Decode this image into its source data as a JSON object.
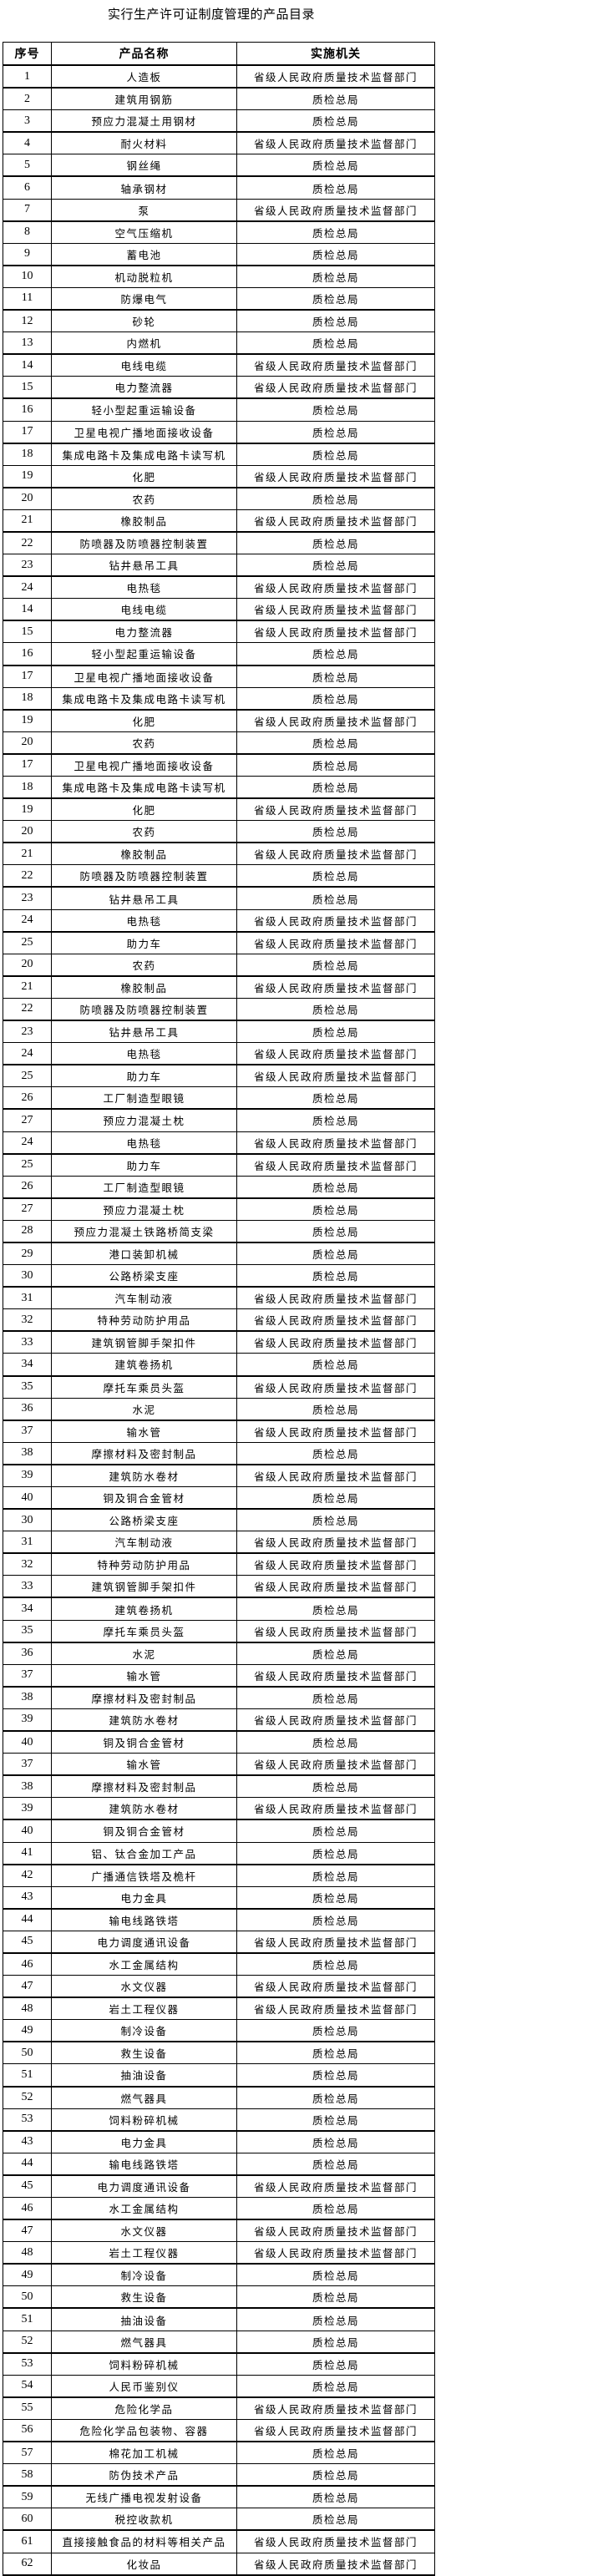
{
  "title": "实行生产许可证制度管理的产品目录",
  "headers": [
    "序号",
    "产品名称",
    "实施机关"
  ],
  "rows": [
    [
      "1",
      "人造板",
      "省级人民政府质量技术监督部门"
    ],
    [
      "2",
      "建筑用钢筋",
      "质检总局"
    ],
    [
      "3",
      "预应力混凝土用钢材",
      "质检总局"
    ],
    [
      "4",
      "耐火材料",
      "省级人民政府质量技术监督部门"
    ],
    [
      "5",
      "钢丝绳",
      "质检总局"
    ],
    [
      "6",
      "轴承钢材",
      "质检总局"
    ],
    [
      "7",
      "泵",
      "省级人民政府质量技术监督部门"
    ],
    [
      "8",
      "空气压缩机",
      "质检总局"
    ],
    [
      "9",
      "蓄电池",
      "质检总局"
    ],
    [
      "10",
      "机动脱粒机",
      "质检总局"
    ],
    [
      "11",
      "防爆电气",
      "质检总局"
    ],
    [
      "12",
      "砂轮",
      "质检总局"
    ],
    [
      "13",
      "内燃机",
      "质检总局"
    ],
    [
      "14",
      "电线电缆",
      "省级人民政府质量技术监督部门"
    ],
    [
      "15",
      "电力整流器",
      "省级人民政府质量技术监督部门"
    ],
    [
      "16",
      "轻小型起重运输设备",
      "质检总局"
    ],
    [
      "17",
      "卫星电视广播地面接收设备",
      "质检总局"
    ],
    [
      "18",
      "集成电路卡及集成电路卡读写机",
      "质检总局"
    ],
    [
      "19",
      "化肥",
      "省级人民政府质量技术监督部门"
    ],
    [
      "20",
      "农药",
      "质检总局"
    ],
    [
      "21",
      "橡胶制品",
      "省级人民政府质量技术监督部门"
    ],
    [
      "22",
      "防喷器及防喷器控制装置",
      "质检总局"
    ],
    [
      "23",
      "钻井悬吊工具",
      "质检总局"
    ],
    [
      "24",
      "电热毯",
      "省级人民政府质量技术监督部门"
    ],
    [
      "14",
      "电线电缆",
      "省级人民政府质量技术监督部门"
    ],
    [
      "15",
      "电力整流器",
      "省级人民政府质量技术监督部门"
    ],
    [
      "16",
      "轻小型起重运输设备",
      "质检总局"
    ],
    [
      "17",
      "卫星电视广播地面接收设备",
      "质检总局"
    ],
    [
      "18",
      "集成电路卡及集成电路卡读写机",
      "质检总局"
    ],
    [
      "19",
      "化肥",
      "省级人民政府质量技术监督部门"
    ],
    [
      "20",
      "农药",
      "质检总局"
    ],
    [
      "17",
      "卫星电视广播地面接收设备",
      "质检总局"
    ],
    [
      "18",
      "集成电路卡及集成电路卡读写机",
      "质检总局"
    ],
    [
      "19",
      "化肥",
      "省级人民政府质量技术监督部门"
    ],
    [
      "20",
      "农药",
      "质检总局"
    ],
    [
      "21",
      "橡胶制品",
      "省级人民政府质量技术监督部门"
    ],
    [
      "22",
      "防喷器及防喷器控制装置",
      "质检总局"
    ],
    [
      "23",
      "钻井悬吊工具",
      "质检总局"
    ],
    [
      "24",
      "电热毯",
      "省级人民政府质量技术监督部门"
    ],
    [
      "25",
      "助力车",
      "省级人民政府质量技术监督部门"
    ],
    [
      "20",
      "农药",
      "质检总局"
    ],
    [
      "21",
      "橡胶制品",
      "省级人民政府质量技术监督部门"
    ],
    [
      "22",
      "防喷器及防喷器控制装置",
      "质检总局"
    ],
    [
      "23",
      "钻井悬吊工具",
      "质检总局"
    ],
    [
      "24",
      "电热毯",
      "省级人民政府质量技术监督部门"
    ],
    [
      "25",
      "助力车",
      "省级人民政府质量技术监督部门"
    ],
    [
      "26",
      "工厂制造型眼镜",
      "质检总局"
    ],
    [
      "27",
      "预应力混凝土枕",
      "质检总局"
    ],
    [
      "24",
      "电热毯",
      "省级人民政府质量技术监督部门"
    ],
    [
      "25",
      "助力车",
      "省级人民政府质量技术监督部门"
    ],
    [
      "26",
      "工厂制造型眼镜",
      "质检总局"
    ],
    [
      "27",
      "预应力混凝土枕",
      "质检总局"
    ],
    [
      "28",
      "预应力混凝土铁路桥简支梁",
      "质检总局"
    ],
    [
      "29",
      "港口装卸机械",
      "质检总局"
    ],
    [
      "30",
      "公路桥梁支座",
      "质检总局"
    ],
    [
      "31",
      "汽车制动液",
      "省级人民政府质量技术监督部门"
    ],
    [
      "32",
      "特种劳动防护用品",
      "省级人民政府质量技术监督部门"
    ],
    [
      "33",
      "建筑钢管脚手架扣件",
      "省级人民政府质量技术监督部门"
    ],
    [
      "34",
      "建筑卷扬机",
      "质检总局"
    ],
    [
      "35",
      "摩托车乘员头盔",
      "省级人民政府质量技术监督部门"
    ],
    [
      "36",
      "水泥",
      "质检总局"
    ],
    [
      "37",
      "输水管",
      "省级人民政府质量技术监督部门"
    ],
    [
      "38",
      "摩擦材料及密封制品",
      "质检总局"
    ],
    [
      "39",
      "建筑防水卷材",
      "省级人民政府质量技术监督部门"
    ],
    [
      "40",
      "铜及铜合金管材",
      "质检总局"
    ],
    [
      "30",
      "公路桥梁支座",
      "质检总局"
    ],
    [
      "31",
      "汽车制动液",
      "省级人民政府质量技术监督部门"
    ],
    [
      "32",
      "特种劳动防护用品",
      "省级人民政府质量技术监督部门"
    ],
    [
      "33",
      "建筑钢管脚手架扣件",
      "省级人民政府质量技术监督部门"
    ],
    [
      "34",
      "建筑卷扬机",
      "质检总局"
    ],
    [
      "35",
      "摩托车乘员头盔",
      "省级人民政府质量技术监督部门"
    ],
    [
      "36",
      "水泥",
      "质检总局"
    ],
    [
      "37",
      "输水管",
      "省级人民政府质量技术监督部门"
    ],
    [
      "38",
      "摩擦材料及密封制品",
      "质检总局"
    ],
    [
      "39",
      "建筑防水卷材",
      "省级人民政府质量技术监督部门"
    ],
    [
      "40",
      "铜及铜合金管材",
      "质检总局"
    ],
    [
      "37",
      "输水管",
      "省级人民政府质量技术监督部门"
    ],
    [
      "38",
      "摩擦材料及密封制品",
      "质检总局"
    ],
    [
      "39",
      "建筑防水卷材",
      "省级人民政府质量技术监督部门"
    ],
    [
      "40",
      "铜及铜合金管材",
      "质检总局"
    ],
    [
      "41",
      "铝、钛合金加工产品",
      "质检总局"
    ],
    [
      "42",
      "广播通信铁塔及桅杆",
      "质检总局"
    ],
    [
      "43",
      "电力金具",
      "质检总局"
    ],
    [
      "44",
      "输电线路铁塔",
      "质检总局"
    ],
    [
      "45",
      "电力调度通讯设备",
      "省级人民政府质量技术监督部门"
    ],
    [
      "46",
      "水工金属结构",
      "质检总局"
    ],
    [
      "47",
      "水文仪器",
      "省级人民政府质量技术监督部门"
    ],
    [
      "48",
      "岩土工程仪器",
      "省级人民政府质量技术监督部门"
    ],
    [
      "49",
      "制冷设备",
      "质检总局"
    ],
    [
      "50",
      "救生设备",
      "质检总局"
    ],
    [
      "51",
      "抽油设备",
      "质检总局"
    ],
    [
      "52",
      "燃气器具",
      "质检总局"
    ],
    [
      "53",
      "饲料粉碎机械",
      "质检总局"
    ],
    [
      "43",
      "电力金具",
      "质检总局"
    ],
    [
      "44",
      "输电线路铁塔",
      "质检总局"
    ],
    [
      "45",
      "电力调度通讯设备",
      "省级人民政府质量技术监督部门"
    ],
    [
      "46",
      "水工金属结构",
      "质检总局"
    ],
    [
      "47",
      "水文仪器",
      "省级人民政府质量技术监督部门"
    ],
    [
      "48",
      "岩土工程仪器",
      "省级人民政府质量技术监督部门"
    ],
    [
      "49",
      "制冷设备",
      "质检总局"
    ],
    [
      "50",
      "救生设备",
      "质检总局"
    ],
    [
      "51",
      "抽油设备",
      "质检总局"
    ],
    [
      "52",
      "燃气器具",
      "质检总局"
    ],
    [
      "53",
      "饲料粉碎机械",
      "质检总局"
    ],
    [
      "54",
      "人民币鉴别仪",
      "质检总局"
    ],
    [
      "55",
      "危险化学品",
      "省级人民政府质量技术监督部门"
    ],
    [
      "56",
      "危险化学品包装物、容器",
      "省级人民政府质量技术监督部门"
    ],
    [
      "57",
      "棉花加工机械",
      "质检总局"
    ],
    [
      "58",
      "防伪技术产品",
      "质检总局"
    ],
    [
      "59",
      "无线广播电视发射设备",
      "质检总局"
    ],
    [
      "60",
      "税控收款机",
      "质检总局"
    ],
    [
      "61",
      "直接接触食品的材料等相关产品",
      "省级人民政府质量技术监督部门"
    ],
    [
      "62",
      "化妆品",
      "省级人民政府质量技术监督部门"
    ]
  ]
}
